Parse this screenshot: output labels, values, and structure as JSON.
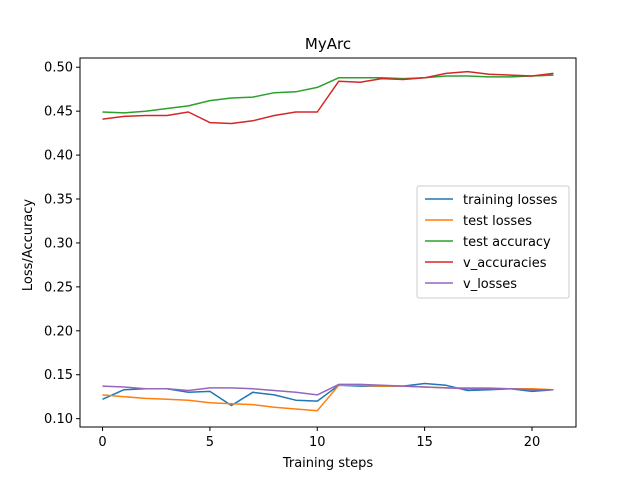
{
  "chart_data": {
    "type": "line",
    "title": "MyArc",
    "xlabel": "Training steps",
    "ylabel": "Loss/Accuracy",
    "xlim": [
      -1.05,
      22.05
    ],
    "ylim": [
      0.0905,
      0.5105
    ],
    "xticks": [
      0,
      5,
      10,
      15,
      20
    ],
    "yticks": [
      0.1,
      0.15,
      0.2,
      0.25,
      0.3,
      0.35,
      0.4,
      0.45,
      0.5
    ],
    "ytick_labels": [
      "0.10",
      "0.15",
      "0.20",
      "0.25",
      "0.30",
      "0.35",
      "0.40",
      "0.45",
      "0.50"
    ],
    "grid": false,
    "legend_position": "center-right",
    "x": [
      0,
      1,
      2,
      3,
      4,
      5,
      6,
      7,
      8,
      9,
      10,
      11,
      12,
      13,
      14,
      15,
      16,
      17,
      18,
      19,
      20,
      21
    ],
    "series": [
      {
        "name": "training losses",
        "color": "#1f77b4",
        "values": [
          0.122,
          0.133,
          0.134,
          0.134,
          0.13,
          0.131,
          0.115,
          0.13,
          0.127,
          0.121,
          0.12,
          0.138,
          0.137,
          0.137,
          0.137,
          0.14,
          0.138,
          0.132,
          0.133,
          0.134,
          0.131,
          0.133
        ]
      },
      {
        "name": "test losses",
        "color": "#ff7f0e",
        "values": [
          0.127,
          0.125,
          0.123,
          0.122,
          0.121,
          0.118,
          0.117,
          0.116,
          0.113,
          0.111,
          0.109,
          0.138,
          0.138,
          0.137,
          0.137,
          0.136,
          0.135,
          0.135,
          0.135,
          0.134,
          0.134,
          0.133
        ]
      },
      {
        "name": "test accuracy",
        "color": "#2ca02c",
        "values": [
          0.449,
          0.448,
          0.45,
          0.453,
          0.456,
          0.462,
          0.465,
          0.466,
          0.471,
          0.472,
          0.477,
          0.488,
          0.488,
          0.488,
          0.487,
          0.488,
          0.49,
          0.49,
          0.489,
          0.489,
          0.49,
          0.491
        ]
      },
      {
        "name": "v_accuracies",
        "color": "#d62728",
        "values": [
          0.441,
          0.444,
          0.445,
          0.445,
          0.449,
          0.437,
          0.436,
          0.439,
          0.445,
          0.449,
          0.449,
          0.484,
          0.483,
          0.487,
          0.486,
          0.488,
          0.493,
          0.495,
          0.492,
          0.491,
          0.49,
          0.493
        ]
      },
      {
        "name": "v_losses",
        "color": "#9467bd",
        "values": [
          0.137,
          0.136,
          0.134,
          0.134,
          0.132,
          0.135,
          0.135,
          0.134,
          0.132,
          0.13,
          0.127,
          0.139,
          0.139,
          0.138,
          0.137,
          0.136,
          0.135,
          0.134,
          0.134,
          0.134,
          0.133,
          0.133
        ]
      }
    ]
  }
}
